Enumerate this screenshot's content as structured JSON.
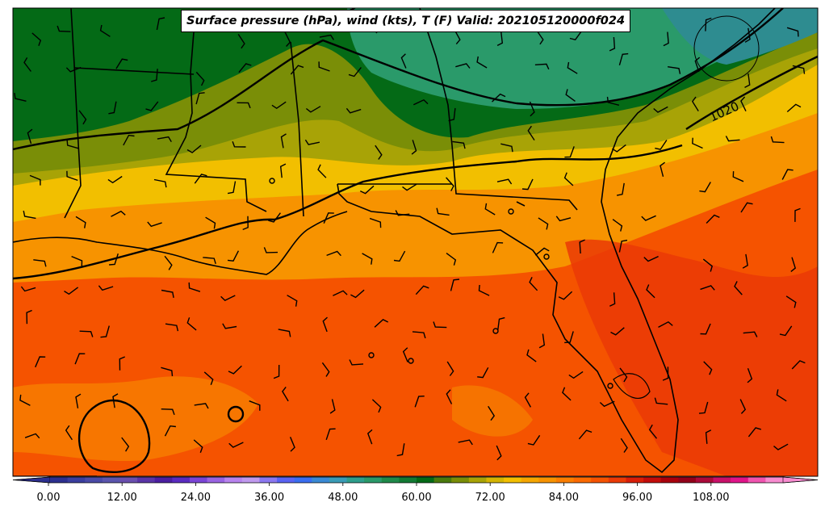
{
  "title": "Surface pressure (hPa), wind (kts), T (F) Valid: 202105120000f024",
  "isobar_label": "1020",
  "colorbar": {
    "ticks": [
      "0.00",
      "12.00",
      "24.00",
      "36.00",
      "48.00",
      "60.00",
      "72.00",
      "84.00",
      "96.00",
      "108.00"
    ],
    "colors": [
      "#2c2f8f",
      "#3a3e9e",
      "#4a4aa6",
      "#5b55ad",
      "#6a4fae",
      "#5a34a6",
      "#4b1ea0",
      "#5a2bc0",
      "#7b45d6",
      "#9a64e2",
      "#b884ee",
      "#c09aee",
      "#8c78f0",
      "#5a63f2",
      "#3a6ef0",
      "#3a8ad4",
      "#3a9cb6",
      "#2e9e8c",
      "#2a9a6a",
      "#1f8a4a",
      "#127a33",
      "#046a16",
      "#4a7a0c",
      "#7a8e07",
      "#a8a306",
      "#d4b402",
      "#f2bf00",
      "#f5a600",
      "#f79300",
      "#fa7e00",
      "#fb6a00",
      "#f55300",
      "#ea3a06",
      "#d81e08",
      "#c20c0a",
      "#a8000c",
      "#92001a",
      "#aa0a3a",
      "#c8106a",
      "#e0148a",
      "#f055b0",
      "#f88cd0"
    ]
  },
  "colors": {
    "coast": "#000000",
    "isobar": "#000000",
    "barb": "#000000"
  }
}
